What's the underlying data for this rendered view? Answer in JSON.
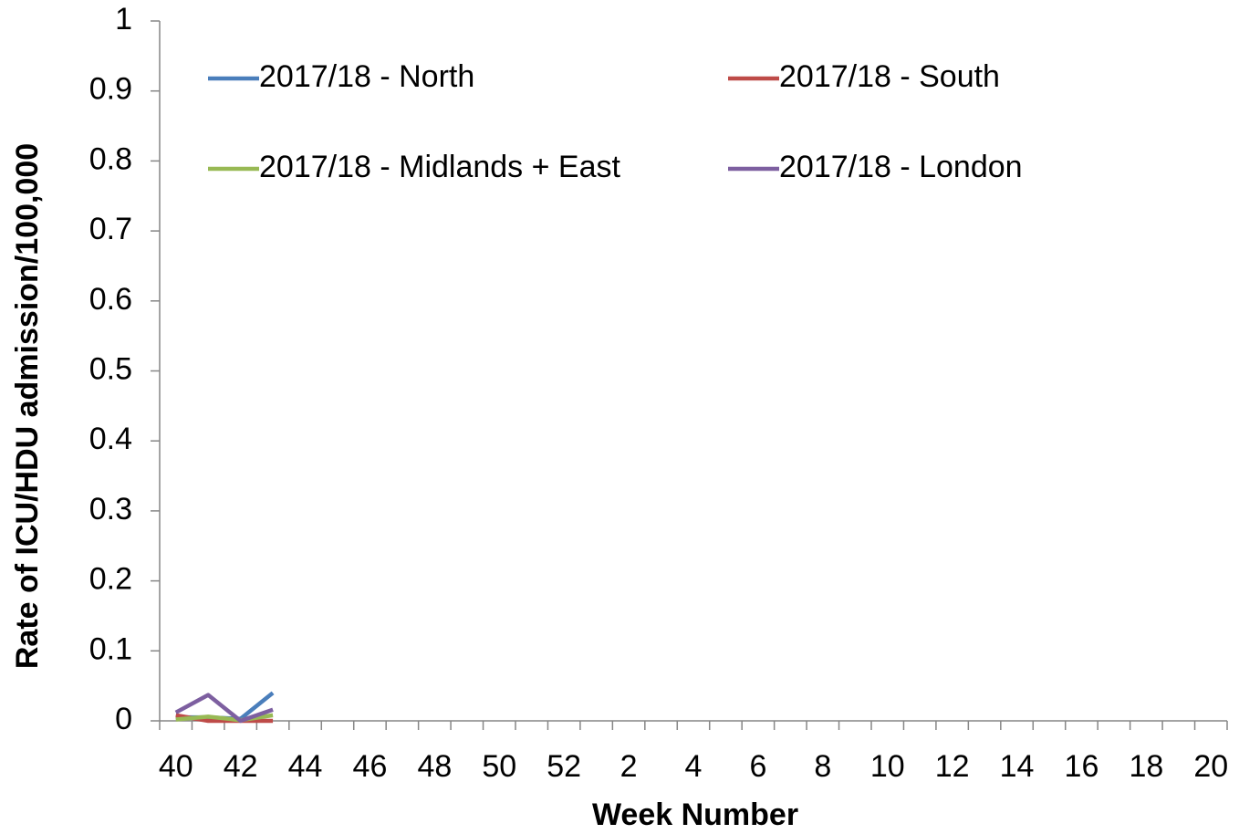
{
  "chart_data": {
    "type": "line",
    "y_label": "Rate of ICU/HDU admission/100,000",
    "x_label": "Week Number",
    "categories": [
      "40",
      null,
      "42",
      null,
      "44",
      null,
      "46",
      null,
      "48",
      null,
      "50",
      null,
      "52",
      null,
      "2",
      null,
      "4",
      null,
      "6",
      null,
      "8",
      null,
      "10",
      null,
      "12",
      null,
      "14",
      null,
      "16",
      null,
      "18",
      null,
      "20"
    ],
    "series": [
      {
        "name": "2017/18 - North",
        "color": "#4a7ebb",
        "values": [
          0.005,
          0.005,
          0.003,
          0.04,
          null,
          null,
          null,
          null,
          null,
          null,
          null,
          null,
          null,
          null,
          null,
          null,
          null,
          null,
          null,
          null,
          null,
          null,
          null,
          null,
          null,
          null,
          null,
          null,
          null,
          null,
          null,
          null,
          null
        ]
      },
      {
        "name": "2017/18 - South",
        "color": "#be4b48",
        "values": [
          0.008,
          0.0,
          0.0,
          0.0,
          null,
          null,
          null,
          null,
          null,
          null,
          null,
          null,
          null,
          null,
          null,
          null,
          null,
          null,
          null,
          null,
          null,
          null,
          null,
          null,
          null,
          null,
          null,
          null,
          null,
          null,
          null,
          null,
          null
        ]
      },
      {
        "name": "2017/18 - Midlands + East",
        "color": "#98b954",
        "values": [
          0.002,
          0.006,
          0.001,
          0.008,
          null,
          null,
          null,
          null,
          null,
          null,
          null,
          null,
          null,
          null,
          null,
          null,
          null,
          null,
          null,
          null,
          null,
          null,
          null,
          null,
          null,
          null,
          null,
          null,
          null,
          null,
          null,
          null,
          null
        ]
      },
      {
        "name": "2017/18 - London",
        "color": "#7d5fa0",
        "values": [
          0.012,
          0.037,
          0.0,
          0.016,
          null,
          null,
          null,
          null,
          null,
          null,
          null,
          null,
          null,
          null,
          null,
          null,
          null,
          null,
          null,
          null,
          null,
          null,
          null,
          null,
          null,
          null,
          null,
          null,
          null,
          null,
          null,
          null,
          null
        ]
      }
    ],
    "ylim": [
      0,
      1
    ],
    "yticks": [
      0,
      0.1,
      0.2,
      0.3,
      0.4,
      0.5,
      0.6,
      0.7,
      0.8,
      0.9,
      1
    ],
    "grid": false,
    "legend": "top"
  }
}
